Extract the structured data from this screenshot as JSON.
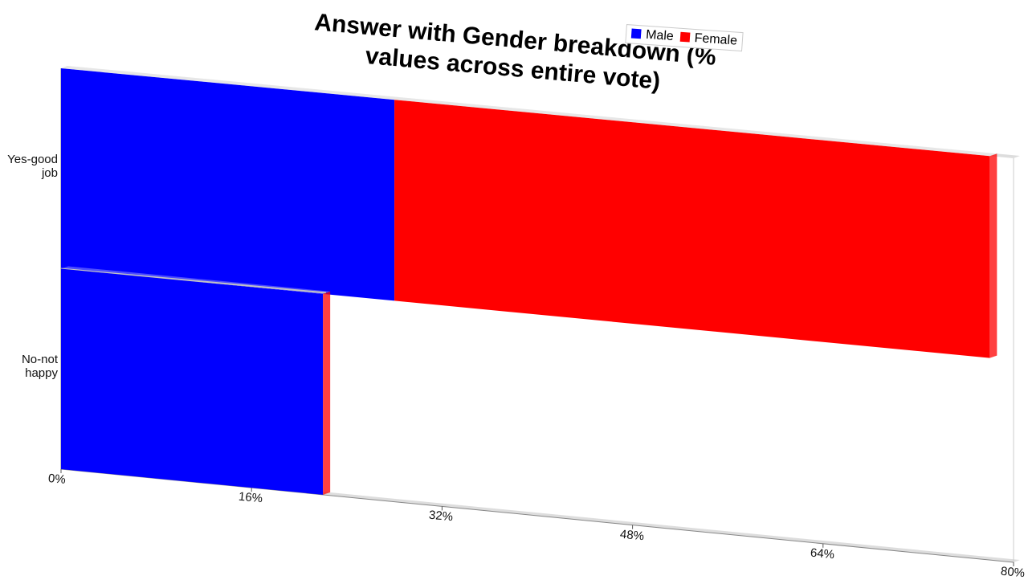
{
  "chart_data": {
    "type": "bar",
    "orientation": "horizontal",
    "stacked": true,
    "title": "Answer with Gender breakdown (% values across entire vote)",
    "categories": [
      "Yes-good job",
      "No-not happy"
    ],
    "series": [
      {
        "name": "Male",
        "color": "#0000ff",
        "values": [
          28,
          22
        ]
      },
      {
        "name": "Female",
        "color": "#ff0000",
        "values": [
          50,
          0
        ]
      }
    ],
    "xlim": [
      0,
      80
    ],
    "xticks": [
      {
        "value": 0,
        "label": "0%"
      },
      {
        "value": 16,
        "label": "16%"
      },
      {
        "value": 32,
        "label": "32%"
      },
      {
        "value": 48,
        "label": "48%"
      },
      {
        "value": 64,
        "label": "64%"
      },
      {
        "value": 80,
        "label": "80%"
      }
    ],
    "legend": "top"
  }
}
